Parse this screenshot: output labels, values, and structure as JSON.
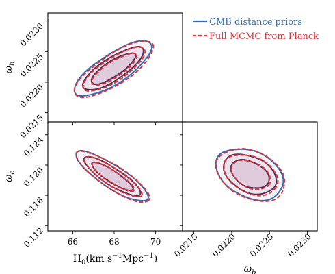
{
  "chart_data": {
    "type": "contour",
    "description_style": "triangle corner plot",
    "params": {
      "H0": {
        "label": "H0(km s^-1 Mpc^-1)",
        "ticks": [
          66,
          68,
          70
        ],
        "range": [
          64.8,
          71.3
        ]
      },
      "omega_b": {
        "label": "ω_b",
        "ticks": [
          0.0215,
          0.022,
          0.0225,
          0.023
        ],
        "tick_labels": [
          "0.0215",
          "0.0220",
          "0.0225",
          "0.0230"
        ],
        "range": [
          0.02135,
          0.02313
        ]
      },
      "omega_c": {
        "label": "ω_c",
        "ticks": [
          0.112,
          0.116,
          0.12,
          0.124
        ],
        "tick_labels": [
          "0.112",
          "0.116",
          "0.120",
          "0.124"
        ],
        "range": [
          0.1113,
          0.1257
        ]
      }
    },
    "legend": {
      "position": "top-right",
      "entries": [
        {
          "name": "CMB distance priors",
          "color": "#2e6fb7",
          "linestyle": "solid"
        },
        {
          "name": "Full MCMC from Planck",
          "color": "#d9343a",
          "linestyle": "dashed"
        }
      ]
    },
    "panels": [
      {
        "id": "H0_vs_omega_b",
        "x": "H0",
        "y": "omega_b",
        "ellipses": {
          "center": [
            67.95,
            0.02222
          ],
          "sigma_major_px": 66,
          "sigma_minor_px": 17,
          "tilt_deg": -33
        },
        "show_x_ticklabels": false,
        "show_y_ticklabels": true,
        "ylabel": "ω_b"
      },
      {
        "id": "H0_vs_omega_c",
        "x": "H0",
        "y": "omega_c",
        "ellipses": {
          "center": [
            67.9,
            0.1185
          ],
          "sigma_major_px": 62,
          "sigma_minor_px": 12,
          "tilt_deg": 33
        },
        "show_x_ticklabels": true,
        "show_y_ticklabels": true,
        "xlabel": "H0(km s^-1 Mpc^-1)",
        "ylabel": "ω_c"
      },
      {
        "id": "omega_b_vs_omega_c",
        "x": "omega_b",
        "y": "omega_c",
        "ellipses": {
          "center": [
            0.02224,
            0.1188
          ],
          "sigma_major_px": 52,
          "sigma_minor_px": 29,
          "tilt_deg": 25
        },
        "show_x_ticklabels": true,
        "show_y_ticklabels": false,
        "xlabel": "ω_b"
      }
    ],
    "levels": [
      1,
      2,
      3
    ],
    "fill_colors": [
      "#d6b8cf",
      "#e6d6e2",
      "#efeaf2"
    ],
    "line_colors": {
      "priors": "#2e6fb7",
      "mcmc": "#d9343a",
      "overlap": "#5a2d55"
    }
  }
}
